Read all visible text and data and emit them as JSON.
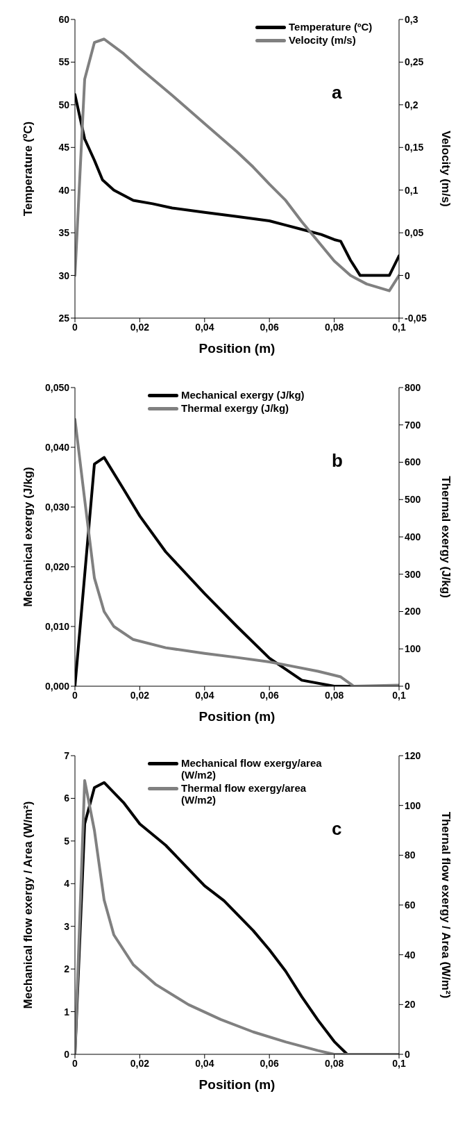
{
  "chart_data": [
    {
      "type": "line",
      "xlabel": "Position (m)",
      "ylabel": "Temperature (ºC)",
      "y2label": "Velocity (m/s)",
      "annotations": [
        "a"
      ],
      "legend": "top right",
      "xlim": [
        0,
        0.1
      ],
      "xticks": [
        {
          "value": 0,
          "label": "0"
        },
        {
          "value": 0.02,
          "label": "0,02"
        },
        {
          "value": 0.04,
          "label": "0,04"
        },
        {
          "value": 0.06,
          "label": "0,06"
        },
        {
          "value": 0.08,
          "label": "0,08"
        },
        {
          "value": 0.1,
          "label": "0,1"
        }
      ],
      "ylim": [
        25,
        60
      ],
      "yticks": [
        25,
        30,
        35,
        40,
        45,
        50,
        55,
        60
      ],
      "y2lim": [
        -0.05,
        0.3
      ],
      "y2ticks": [
        {
          "value": -0.05,
          "label": "-0,05"
        },
        0,
        {
          "value": 0.05,
          "label": "0,05"
        },
        {
          "value": 0.1,
          "label": "0,1"
        },
        {
          "value": 0.15,
          "label": "0,15"
        },
        {
          "value": 0.2,
          "label": "0,2"
        },
        {
          "value": 0.25,
          "label": "0,25"
        },
        {
          "value": 0.3,
          "label": "0,3"
        }
      ],
      "series": [
        {
          "name": "Temperature (ºC)",
          "color": "#000000",
          "x": [
            0,
            0.003,
            0.006,
            0.0085,
            0.012,
            0.018,
            0.024,
            0.03,
            0.04,
            0.05,
            0.06,
            0.065,
            0.07,
            0.076,
            0.08,
            0.082,
            0.085,
            0.088,
            0.097,
            0.1
          ],
          "values": [
            51.2,
            46,
            43.5,
            41.2,
            40,
            38.8,
            38.4,
            37.9,
            37.4,
            36.9,
            36.4,
            35.9,
            35.4,
            34.8,
            34.2,
            34,
            31.8,
            30,
            30,
            32.3
          ]
        },
        {
          "name": "Velocity (m/s)",
          "color": "#808080",
          "axis": "y2",
          "x": [
            0,
            0.003,
            0.006,
            0.009,
            0.015,
            0.02,
            0.03,
            0.04,
            0.05,
            0.055,
            0.06,
            0.065,
            0.07,
            0.075,
            0.08,
            0.085,
            0.09,
            0.097,
            0.1
          ],
          "values": [
            0,
            0.23,
            0.273,
            0.277,
            0.26,
            0.243,
            0.211,
            0.178,
            0.145,
            0.127,
            0.107,
            0.088,
            0.063,
            0.04,
            0.017,
            0,
            -0.01,
            -0.018,
            0
          ]
        }
      ]
    },
    {
      "type": "line",
      "xlabel": "Position (m)",
      "ylabel": "Mechanical  exergy  (J/kg)",
      "y2label": "Thermal exergy  (J/kg)",
      "annotations": [
        "b"
      ],
      "legend": "top",
      "xlim": [
        0,
        0.1
      ],
      "xticks": [
        {
          "value": 0,
          "label": "0"
        },
        {
          "value": 0.02,
          "label": "0,02"
        },
        {
          "value": 0.04,
          "label": "0,04"
        },
        {
          "value": 0.06,
          "label": "0,06"
        },
        {
          "value": 0.08,
          "label": "0,08"
        },
        {
          "value": 0.1,
          "label": "0,1"
        }
      ],
      "ylim": [
        0,
        0.05
      ],
      "yticks": [
        {
          "value": 0,
          "label": "0,000"
        },
        {
          "value": 0.01,
          "label": "0,010"
        },
        {
          "value": 0.02,
          "label": "0,020"
        },
        {
          "value": 0.03,
          "label": "0,030"
        },
        {
          "value": 0.04,
          "label": "0,040"
        },
        {
          "value": 0.05,
          "label": "0,050"
        }
      ],
      "y2lim": [
        0,
        800
      ],
      "y2ticks": [
        0,
        100,
        200,
        300,
        400,
        500,
        600,
        700,
        800
      ],
      "series": [
        {
          "name": "Mechanical exergy (J/kg)",
          "color": "#000000",
          "x": [
            0,
            0.006,
            0.009,
            0.015,
            0.02,
            0.028,
            0.04,
            0.05,
            0.06,
            0.07,
            0.08,
            0.1
          ],
          "values": [
            0,
            0.0372,
            0.0383,
            0.033,
            0.0285,
            0.0225,
            0.0155,
            0.01,
            0.0047,
            0.001,
            0,
            0
          ]
        },
        {
          "name": "Thermal exergy (J/kg)",
          "color": "#808080",
          "axis": "y2",
          "x": [
            0,
            0.003,
            0.006,
            0.009,
            0.012,
            0.018,
            0.028,
            0.04,
            0.05,
            0.06,
            0.065,
            0.075,
            0.082,
            0.086,
            0.1
          ],
          "values": [
            715,
            500,
            290,
            200,
            160,
            125,
            103,
            88,
            77,
            65,
            57,
            40,
            25,
            0,
            3
          ]
        }
      ]
    },
    {
      "type": "line",
      "xlabel": "Position (m)",
      "ylabel": "Mechanical  flow exergy  / Area (W/m²)",
      "y2label": "Thernal flow exergy  / Area (W/m²)",
      "annotations": [
        "c"
      ],
      "legend": "top",
      "xlim": [
        0,
        0.1
      ],
      "xticks": [
        {
          "value": 0,
          "label": "0"
        },
        {
          "value": 0.02,
          "label": "0,02"
        },
        {
          "value": 0.04,
          "label": "0,04"
        },
        {
          "value": 0.06,
          "label": "0,06"
        },
        {
          "value": 0.08,
          "label": "0,08"
        },
        {
          "value": 0.1,
          "label": "0,1"
        }
      ],
      "ylim": [
        0,
        7
      ],
      "yticks": [
        0,
        1,
        2,
        3,
        4,
        5,
        6,
        7
      ],
      "y2lim": [
        0,
        120
      ],
      "y2ticks": [
        0,
        20,
        40,
        60,
        80,
        100,
        120
      ],
      "series": [
        {
          "name": "Mechanical flow exergy/area (W/m2)",
          "color": "#000000",
          "x": [
            0,
            0.003,
            0.006,
            0.009,
            0.015,
            0.02,
            0.028,
            0.04,
            0.046,
            0.055,
            0.06,
            0.065,
            0.07,
            0.075,
            0.08,
            0.084,
            0.1
          ],
          "values": [
            0,
            5.4,
            6.25,
            6.37,
            5.9,
            5.4,
            4.9,
            3.95,
            3.6,
            2.9,
            2.45,
            1.95,
            1.35,
            0.8,
            0.3,
            0,
            0
          ]
        },
        {
          "name": "Thermal flow exergy/area (W/m2)",
          "color": "#808080",
          "axis": "y2",
          "x": [
            0,
            0.003,
            0.006,
            0.009,
            0.012,
            0.018,
            0.025,
            0.035,
            0.045,
            0.055,
            0.065,
            0.075,
            0.08,
            0.1
          ],
          "values": [
            0,
            110,
            90,
            62,
            48,
            36,
            28,
            20,
            14,
            9,
            5,
            1.5,
            0,
            0
          ]
        }
      ]
    }
  ]
}
